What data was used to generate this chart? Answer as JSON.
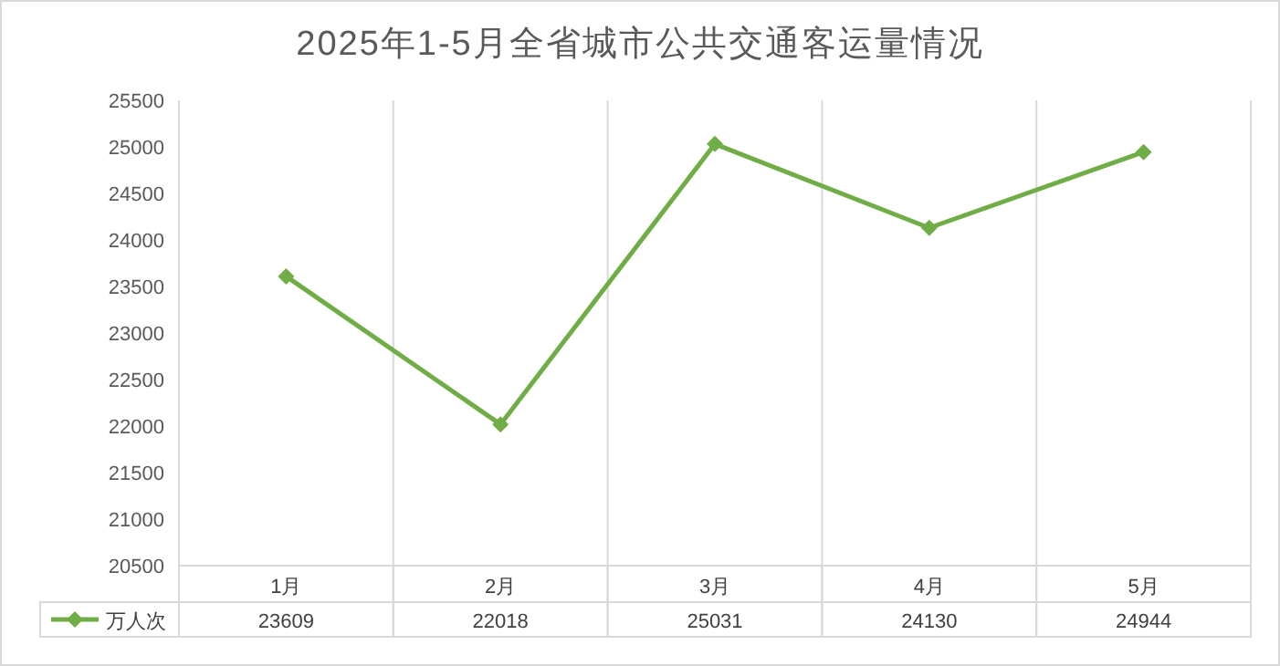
{
  "chart_data": {
    "type": "line",
    "title": "2025年1-5月全省城市公共交通客运量情况",
    "categories": [
      "1月",
      "2月",
      "3月",
      "4月",
      "5月"
    ],
    "series": [
      {
        "name": "万人次",
        "color": "#70ad47",
        "values": [
          23609,
          22018,
          25031,
          24130,
          24944
        ]
      }
    ],
    "ylim": [
      20500,
      25500
    ],
    "yticks": [
      20500,
      21000,
      21500,
      22000,
      22500,
      23000,
      23500,
      24000,
      24500,
      25000,
      25500
    ],
    "marker": "diamond",
    "line_style": "solid",
    "data_labels": true,
    "grid": "x",
    "legend": "bottom left"
  }
}
